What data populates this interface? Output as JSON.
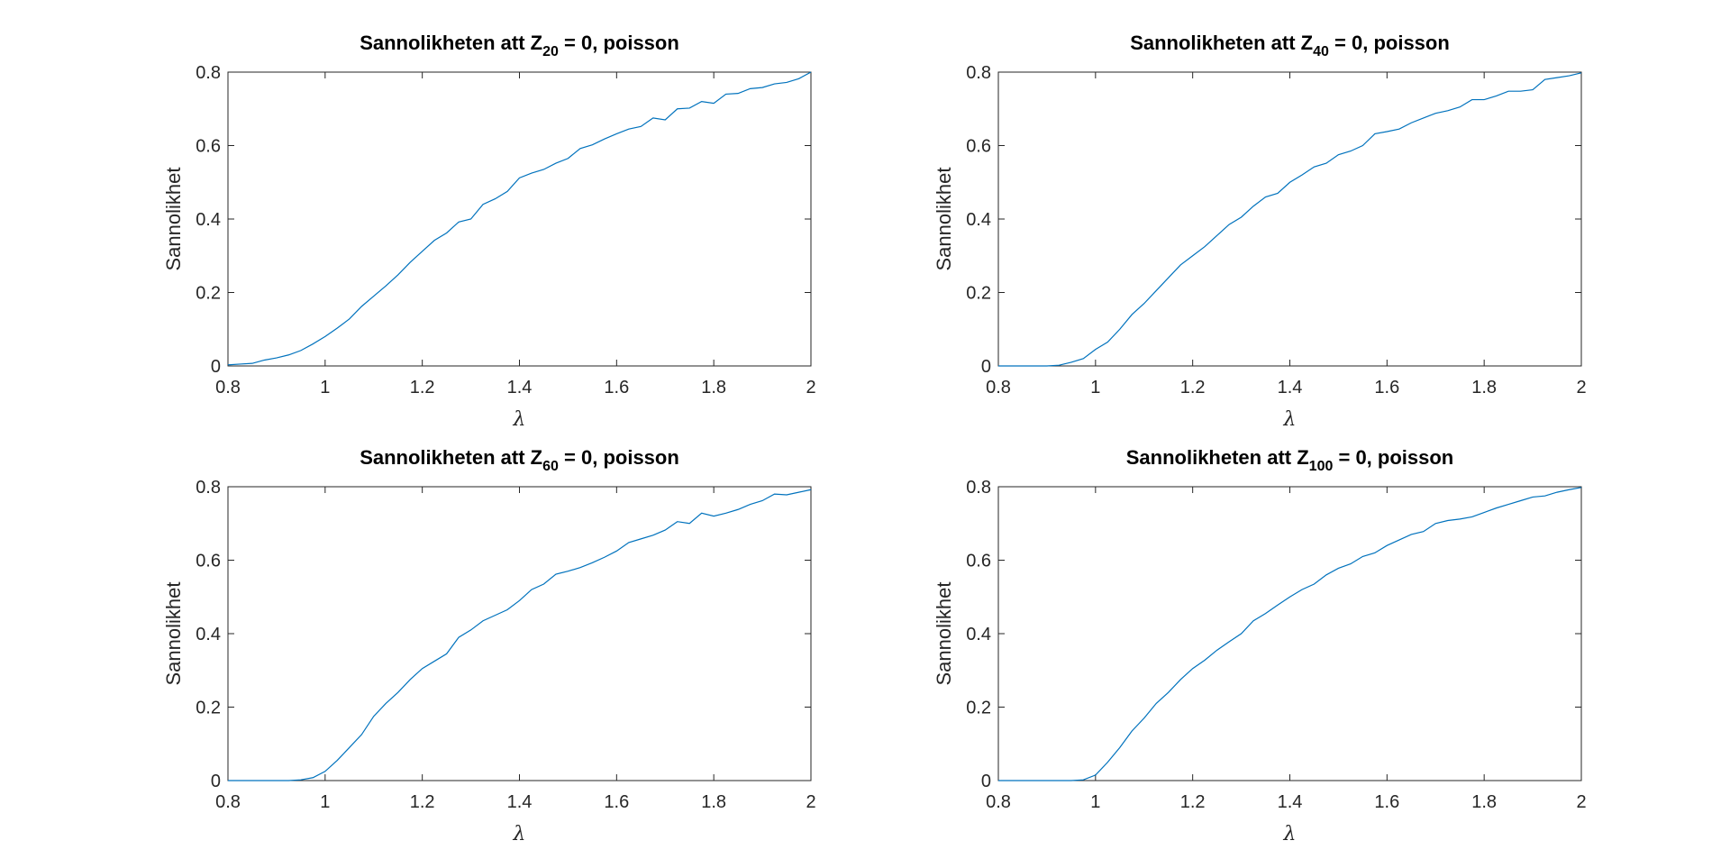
{
  "colors": {
    "series": "#0072bd",
    "axes": "#262626"
  },
  "chart_data": [
    {
      "type": "line",
      "title": {
        "prefix": "Sannolikheten att Z",
        "subscript": "20",
        "suffix": " = 0, poisson"
      },
      "xlabel": "λ",
      "ylabel": "Sannolikhet",
      "xlim": [
        0.8,
        2
      ],
      "ylim": [
        0,
        0.8
      ],
      "xticks": [
        "0.8",
        "1",
        "1.2",
        "1.4",
        "1.6",
        "1.8",
        "2"
      ],
      "yticks": [
        "0",
        "0.2",
        "0.4",
        "0.6",
        "0.8"
      ],
      "grid": false,
      "x": [
        0.8,
        0.825,
        0.85,
        0.875,
        0.9,
        0.925,
        0.95,
        0.975,
        1.0,
        1.025,
        1.05,
        1.075,
        1.1,
        1.125,
        1.15,
        1.175,
        1.2,
        1.225,
        1.25,
        1.275,
        1.3,
        1.325,
        1.35,
        1.375,
        1.4,
        1.425,
        1.45,
        1.475,
        1.5,
        1.525,
        1.55,
        1.575,
        1.6,
        1.625,
        1.65,
        1.675,
        1.7,
        1.725,
        1.75,
        1.775,
        1.8,
        1.825,
        1.85,
        1.875,
        1.9,
        1.925,
        1.95,
        1.975,
        2.0
      ],
      "y": [
        0.003,
        0.005,
        0.007,
        0.016,
        0.022,
        0.03,
        0.042,
        0.06,
        0.08,
        0.103,
        0.128,
        0.162,
        0.19,
        0.218,
        0.248,
        0.282,
        0.312,
        0.342,
        0.362,
        0.392,
        0.4,
        0.44,
        0.455,
        0.475,
        0.512,
        0.525,
        0.535,
        0.552,
        0.565,
        0.592,
        0.602,
        0.618,
        0.632,
        0.645,
        0.652,
        0.675,
        0.67,
        0.7,
        0.702,
        0.72,
        0.715,
        0.74,
        0.742,
        0.755,
        0.758,
        0.768,
        0.772,
        0.782,
        0.8
      ]
    },
    {
      "type": "line",
      "title": {
        "prefix": "Sannolikheten att Z",
        "subscript": "40",
        "suffix": " = 0, poisson"
      },
      "xlabel": "λ",
      "ylabel": "Sannolikhet",
      "xlim": [
        0.8,
        2
      ],
      "ylim": [
        0,
        0.8
      ],
      "xticks": [
        "0.8",
        "1",
        "1.2",
        "1.4",
        "1.6",
        "1.8",
        "2"
      ],
      "yticks": [
        "0",
        "0.2",
        "0.4",
        "0.6",
        "0.8"
      ],
      "grid": false,
      "x": [
        0.8,
        0.825,
        0.85,
        0.875,
        0.9,
        0.925,
        0.95,
        0.975,
        1.0,
        1.025,
        1.05,
        1.075,
        1.1,
        1.125,
        1.15,
        1.175,
        1.2,
        1.225,
        1.25,
        1.275,
        1.3,
        1.325,
        1.35,
        1.375,
        1.4,
        1.425,
        1.45,
        1.475,
        1.5,
        1.525,
        1.55,
        1.575,
        1.6,
        1.625,
        1.65,
        1.675,
        1.7,
        1.725,
        1.75,
        1.775,
        1.8,
        1.825,
        1.85,
        1.875,
        1.9,
        1.925,
        1.95,
        1.975,
        2.0
      ],
      "y": [
        0.0,
        0.0,
        0.0,
        0.0,
        0.0,
        0.002,
        0.01,
        0.02,
        0.045,
        0.065,
        0.1,
        0.14,
        0.17,
        0.205,
        0.24,
        0.275,
        0.3,
        0.325,
        0.355,
        0.385,
        0.405,
        0.435,
        0.46,
        0.47,
        0.5,
        0.52,
        0.542,
        0.552,
        0.575,
        0.585,
        0.6,
        0.632,
        0.638,
        0.645,
        0.662,
        0.675,
        0.688,
        0.695,
        0.705,
        0.725,
        0.725,
        0.735,
        0.748,
        0.748,
        0.752,
        0.78,
        0.785,
        0.79,
        0.798
      ]
    },
    {
      "type": "line",
      "title": {
        "prefix": "Sannolikheten att Z",
        "subscript": "60",
        "suffix": " = 0, poisson"
      },
      "xlabel": "λ",
      "ylabel": "Sannolikhet",
      "xlim": [
        0.8,
        2
      ],
      "ylim": [
        0,
        0.8
      ],
      "xticks": [
        "0.8",
        "1",
        "1.2",
        "1.4",
        "1.6",
        "1.8",
        "2"
      ],
      "yticks": [
        "0",
        "0.2",
        "0.4",
        "0.6",
        "0.8"
      ],
      "grid": false,
      "x": [
        0.8,
        0.825,
        0.85,
        0.875,
        0.9,
        0.925,
        0.95,
        0.975,
        1.0,
        1.025,
        1.05,
        1.075,
        1.1,
        1.125,
        1.15,
        1.175,
        1.2,
        1.225,
        1.25,
        1.275,
        1.3,
        1.325,
        1.35,
        1.375,
        1.4,
        1.425,
        1.45,
        1.475,
        1.5,
        1.525,
        1.55,
        1.575,
        1.6,
        1.625,
        1.65,
        1.675,
        1.7,
        1.725,
        1.75,
        1.775,
        1.8,
        1.825,
        1.85,
        1.875,
        1.9,
        1.925,
        1.95,
        1.975,
        2.0
      ],
      "y": [
        0.0,
        0.0,
        0.0,
        0.0,
        0.0,
        0.0,
        0.002,
        0.008,
        0.025,
        0.055,
        0.09,
        0.125,
        0.175,
        0.21,
        0.24,
        0.275,
        0.305,
        0.325,
        0.345,
        0.39,
        0.41,
        0.435,
        0.45,
        0.465,
        0.49,
        0.52,
        0.535,
        0.562,
        0.57,
        0.58,
        0.593,
        0.608,
        0.625,
        0.648,
        0.658,
        0.668,
        0.682,
        0.705,
        0.7,
        0.728,
        0.72,
        0.728,
        0.738,
        0.752,
        0.762,
        0.78,
        0.778,
        0.785,
        0.792
      ]
    },
    {
      "type": "line",
      "title": {
        "prefix": "Sannolikheten att Z",
        "subscript": "100",
        "suffix": " = 0, poisson"
      },
      "xlabel": "λ",
      "ylabel": "Sannolikhet",
      "xlim": [
        0.8,
        2
      ],
      "ylim": [
        0,
        0.8
      ],
      "xticks": [
        "0.8",
        "1",
        "1.2",
        "1.4",
        "1.6",
        "1.8",
        "2"
      ],
      "yticks": [
        "0",
        "0.2",
        "0.4",
        "0.6",
        "0.8"
      ],
      "grid": false,
      "x": [
        0.8,
        0.825,
        0.85,
        0.875,
        0.9,
        0.925,
        0.95,
        0.975,
        1.0,
        1.025,
        1.05,
        1.075,
        1.1,
        1.125,
        1.15,
        1.175,
        1.2,
        1.225,
        1.25,
        1.275,
        1.3,
        1.325,
        1.35,
        1.375,
        1.4,
        1.425,
        1.45,
        1.475,
        1.5,
        1.525,
        1.55,
        1.575,
        1.6,
        1.625,
        1.65,
        1.675,
        1.7,
        1.725,
        1.75,
        1.775,
        1.8,
        1.825,
        1.85,
        1.875,
        1.9,
        1.925,
        1.95,
        1.975,
        2.0
      ],
      "y": [
        0.0,
        0.0,
        0.0,
        0.0,
        0.0,
        0.0,
        0.0,
        0.002,
        0.015,
        0.05,
        0.09,
        0.135,
        0.17,
        0.21,
        0.24,
        0.275,
        0.305,
        0.328,
        0.355,
        0.378,
        0.4,
        0.435,
        0.455,
        0.478,
        0.5,
        0.52,
        0.535,
        0.56,
        0.578,
        0.59,
        0.61,
        0.62,
        0.64,
        0.655,
        0.67,
        0.678,
        0.7,
        0.708,
        0.712,
        0.718,
        0.73,
        0.742,
        0.752,
        0.762,
        0.772,
        0.775,
        0.785,
        0.792,
        0.798
      ]
    }
  ]
}
